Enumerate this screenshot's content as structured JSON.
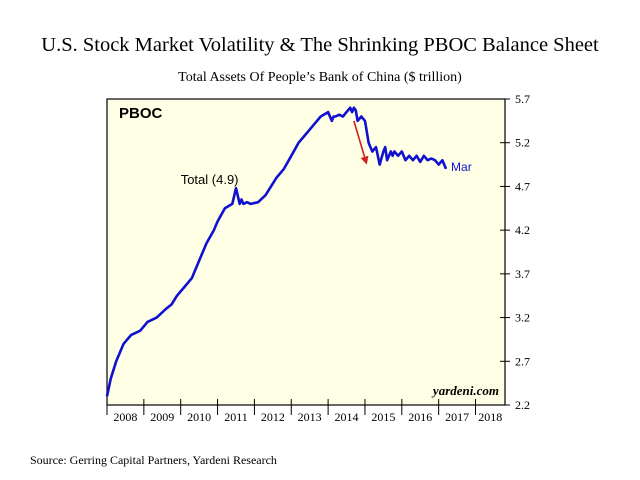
{
  "header": {
    "title": "U.S. Stock Market Volatility & The Shrinking PBOC Balance Sheet"
  },
  "footer": {
    "source": "Source: Gerring Capital Partners, Yardeni Research"
  },
  "chart_data": {
    "type": "line",
    "title": "Total Assets Of People’s Bank of China ($ trillion)",
    "panel_label": "PBOC",
    "watermark": "yardeni.com",
    "ylim": [
      2.2,
      5.7
    ],
    "yticks": [
      "2.2",
      "2.7",
      "3.2",
      "3.7",
      "4.2",
      "4.7",
      "5.2",
      "5.7"
    ],
    "xlim": [
      2008.0,
      2018.8
    ],
    "xticks": [
      "2008",
      "2009",
      "2010",
      "2011",
      "2012",
      "2013",
      "2014",
      "2015",
      "2016",
      "2017",
      "2018"
    ],
    "grid": false,
    "background_color": "#ffffe6",
    "line_color": "#1010d0",
    "arrow_color": "#d02020",
    "series": [
      {
        "name": "Total (4.9)",
        "end_label": "Mar",
        "x": [
          2008.0,
          2008.1,
          2008.25,
          2008.45,
          2008.65,
          2008.9,
          2009.1,
          2009.35,
          2009.6,
          2009.75,
          2009.9,
          2010.1,
          2010.3,
          2010.5,
          2010.7,
          2010.9,
          2011.0,
          2011.2,
          2011.4,
          2011.5,
          2011.6,
          2011.65,
          2011.7,
          2011.8,
          2011.9,
          2012.1,
          2012.3,
          2012.45,
          2012.6,
          2012.8,
          2013.0,
          2013.2,
          2013.4,
          2013.6,
          2013.8,
          2014.0,
          2014.1,
          2014.15,
          2014.2,
          2014.3,
          2014.4,
          2014.5,
          2014.6,
          2014.65,
          2014.7,
          2014.75,
          2014.8,
          2014.9,
          2015.0,
          2015.1,
          2015.2,
          2015.3,
          2015.4,
          2015.5,
          2015.55,
          2015.6,
          2015.7,
          2015.75,
          2015.8,
          2015.9,
          2016.0,
          2016.1,
          2016.2,
          2016.3,
          2016.4,
          2016.5,
          2016.6,
          2016.7,
          2016.8,
          2016.9,
          2017.0,
          2017.1,
          2017.2
        ],
        "values": [
          2.3,
          2.5,
          2.7,
          2.9,
          3.0,
          3.05,
          3.15,
          3.2,
          3.3,
          3.35,
          3.45,
          3.55,
          3.65,
          3.85,
          4.05,
          4.2,
          4.3,
          4.45,
          4.5,
          4.68,
          4.5,
          4.55,
          4.5,
          4.52,
          4.5,
          4.52,
          4.6,
          4.7,
          4.8,
          4.9,
          5.05,
          5.2,
          5.3,
          5.4,
          5.5,
          5.55,
          5.45,
          5.5,
          5.5,
          5.52,
          5.5,
          5.55,
          5.6,
          5.55,
          5.6,
          5.57,
          5.45,
          5.5,
          5.45,
          5.2,
          5.1,
          5.15,
          4.95,
          5.1,
          5.15,
          5.0,
          5.1,
          5.05,
          5.1,
          5.05,
          5.1,
          5.0,
          5.05,
          5.0,
          5.05,
          4.98,
          5.05,
          5.0,
          5.02,
          5.0,
          4.95,
          5.0,
          4.9
        ]
      }
    ],
    "annotations": [
      {
        "type": "text",
        "text": "Total (4.9)"
      },
      {
        "type": "arrow",
        "x1": 2014.7,
        "y1": 5.45,
        "x2": 2015.05,
        "y2": 4.95
      }
    ]
  }
}
